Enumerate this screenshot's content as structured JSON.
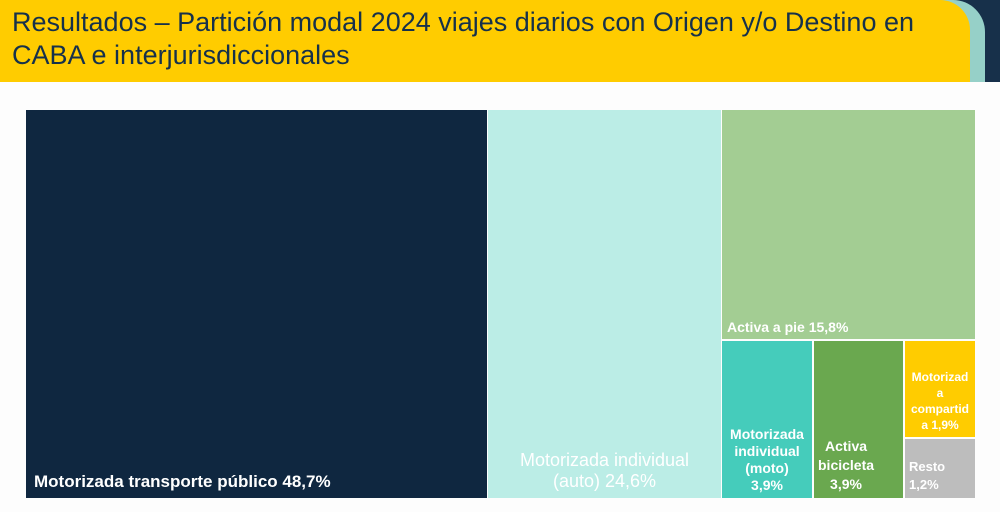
{
  "header": {
    "title": "Resultados – Partición modal 2024 viajes diarios con Origen y/o Destino en CABA e interjurisdiccionales"
  },
  "chart_data": {
    "type": "treemap",
    "title": "Resultados – Partición modal 2024 viajes diarios con Origen y/o Destino en CABA e interjurisdiccionales",
    "unit": "%",
    "items": [
      {
        "name": "Motorizada transporte público",
        "value": 48.7,
        "label": "Motorizada transporte público 48,7%",
        "color": "#0f2740"
      },
      {
        "name": "Motorizada individual (auto)",
        "value": 24.6,
        "label": "Motorizada individual (auto) 24,6%",
        "color": "#bbede6"
      },
      {
        "name": "Activa a pie",
        "value": 15.8,
        "label": "Activa a pie 15,8%",
        "color": "#a3cd93"
      },
      {
        "name": "Motorizada individual (moto)",
        "value": 3.9,
        "label": "Motorizada individual (moto) 3,9%",
        "color": "#45ccbb"
      },
      {
        "name": "Activa bicicleta",
        "value": 3.9,
        "label": "Activa bicicleta 3,9%",
        "color": "#6aa84f"
      },
      {
        "name": "Motorizada compartida",
        "value": 1.9,
        "label": "Motorizada compartida 1,9%",
        "color": "#ffcc00"
      },
      {
        "name": "Resto",
        "value": 1.2,
        "label": "Resto 1,2%",
        "color": "#bdbdbd"
      }
    ]
  }
}
